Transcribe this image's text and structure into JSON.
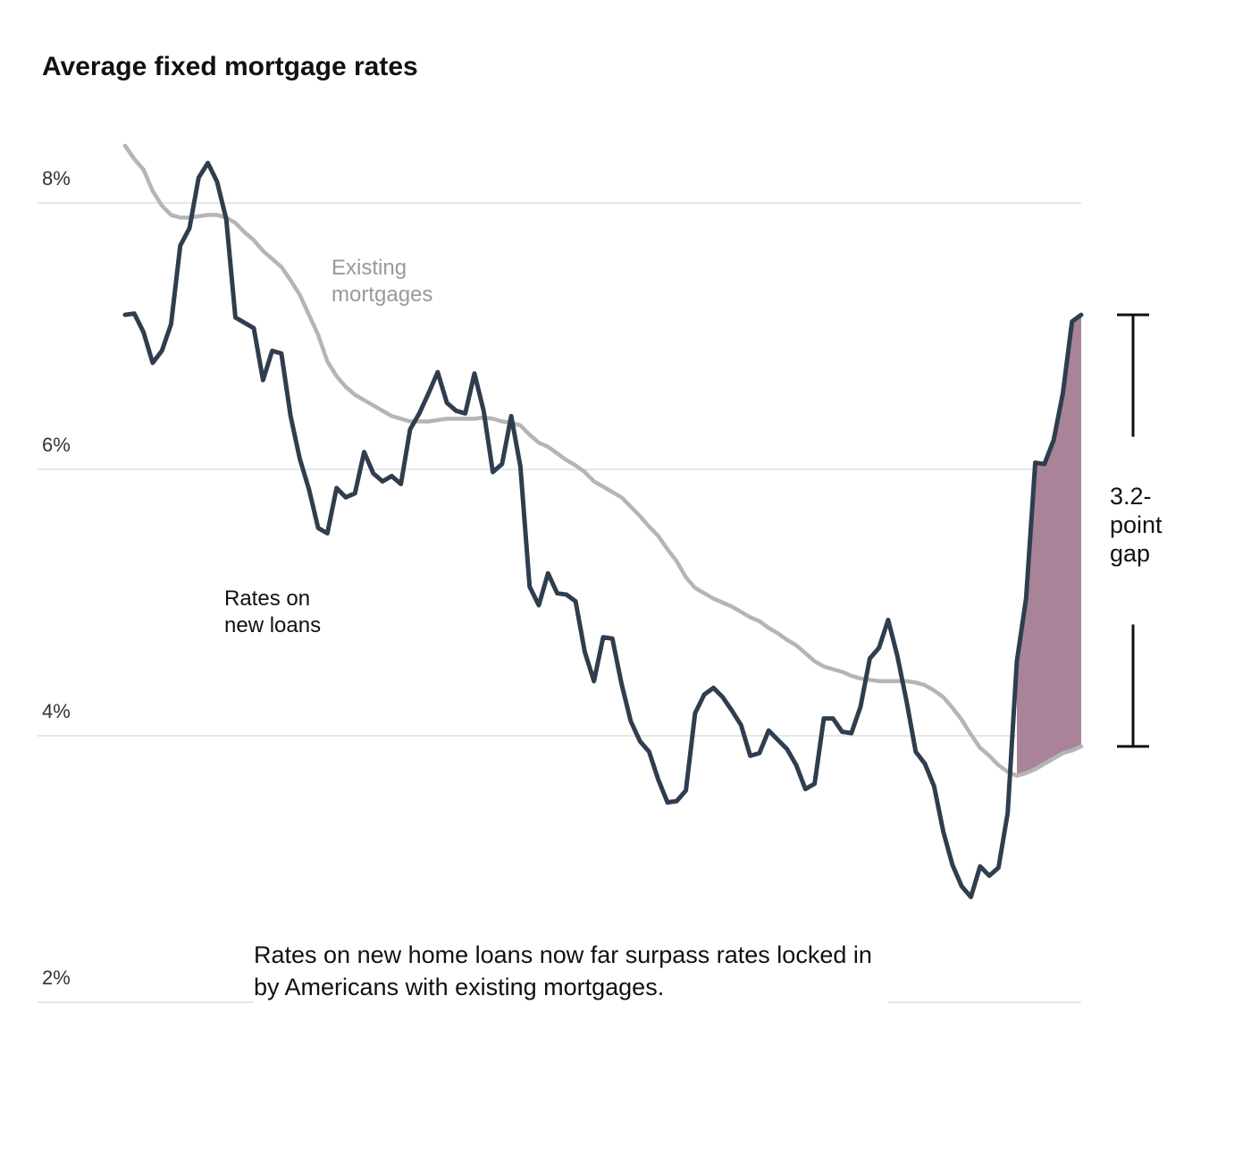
{
  "chart_data": {
    "type": "line",
    "title": "Average fixed mortgage rates",
    "note": "Rates on new home loans now far surpass rates locked in by Americans with existing mortgages.",
    "gap_annotation": "3.2-point gap",
    "gap_color": "#a98498",
    "grid": true,
    "ylim": [
      2,
      8.5
    ],
    "yticks": [
      {
        "value": 2,
        "label": "2%"
      },
      {
        "value": 4,
        "label": "4%"
      },
      {
        "value": 6,
        "label": "6%"
      },
      {
        "value": 8,
        "label": "8%"
      }
    ],
    "series": [
      {
        "name": "Rates on new loans",
        "color": "#2f3e4e",
        "values": [
          7.16,
          7.17,
          7.03,
          6.8,
          6.89,
          7.09,
          7.68,
          7.81,
          8.19,
          8.3,
          8.16,
          7.88,
          7.14,
          7.1,
          7.06,
          6.67,
          6.89,
          6.87,
          6.4,
          6.08,
          5.85,
          5.56,
          5.52,
          5.86,
          5.79,
          5.82,
          6.13,
          5.97,
          5.91,
          5.95,
          5.89,
          6.3,
          6.42,
          6.57,
          6.73,
          6.5,
          6.44,
          6.42,
          6.72,
          6.44,
          5.98,
          6.04,
          6.4,
          6.02,
          5.12,
          4.98,
          5.22,
          5.07,
          5.06,
          5.01,
          4.63,
          4.41,
          4.74,
          4.73,
          4.39,
          4.11,
          3.96,
          3.88,
          3.67,
          3.5,
          3.51,
          3.59,
          4.17,
          4.31,
          4.36,
          4.29,
          4.19,
          4.08,
          3.85,
          3.87,
          4.04,
          3.97,
          3.9,
          3.78,
          3.6,
          3.64,
          4.13,
          4.13,
          4.03,
          4.02,
          4.22,
          4.58,
          4.66,
          4.87,
          4.6,
          4.26,
          3.88,
          3.79,
          3.62,
          3.28,
          3.03,
          2.87,
          2.79,
          3.02,
          2.95,
          3.01,
          3.42,
          4.56,
          5.03,
          6.05,
          6.04,
          6.22,
          6.57,
          7.11,
          7.16
        ]
      },
      {
        "name": "Existing mortgages",
        "color": "#b5b5b5",
        "values": [
          8.43,
          8.33,
          8.25,
          8.09,
          7.98,
          7.91,
          7.89,
          7.89,
          7.9,
          7.91,
          7.91,
          7.89,
          7.85,
          7.78,
          7.72,
          7.64,
          7.58,
          7.52,
          7.42,
          7.31,
          7.16,
          7.01,
          6.81,
          6.7,
          6.62,
          6.56,
          6.52,
          6.48,
          6.44,
          6.4,
          6.38,
          6.36,
          6.36,
          6.36,
          6.37,
          6.38,
          6.38,
          6.38,
          6.38,
          6.39,
          6.38,
          6.36,
          6.35,
          6.33,
          6.26,
          6.2,
          6.17,
          6.12,
          6.07,
          6.03,
          5.98,
          5.91,
          5.87,
          5.83,
          5.79,
          5.72,
          5.65,
          5.57,
          5.5,
          5.4,
          5.31,
          5.19,
          5.11,
          5.07,
          5.03,
          5.0,
          4.97,
          4.93,
          4.89,
          4.86,
          4.81,
          4.77,
          4.72,
          4.68,
          4.62,
          4.56,
          4.52,
          4.5,
          4.48,
          4.45,
          4.43,
          4.42,
          4.41,
          4.41,
          4.41,
          4.41,
          4.4,
          4.38,
          4.34,
          4.29,
          4.21,
          4.12,
          4.01,
          3.91,
          3.85,
          3.78,
          3.73,
          3.7,
          3.72,
          3.75,
          3.79,
          3.83,
          3.87,
          3.89,
          3.92
        ]
      }
    ]
  }
}
